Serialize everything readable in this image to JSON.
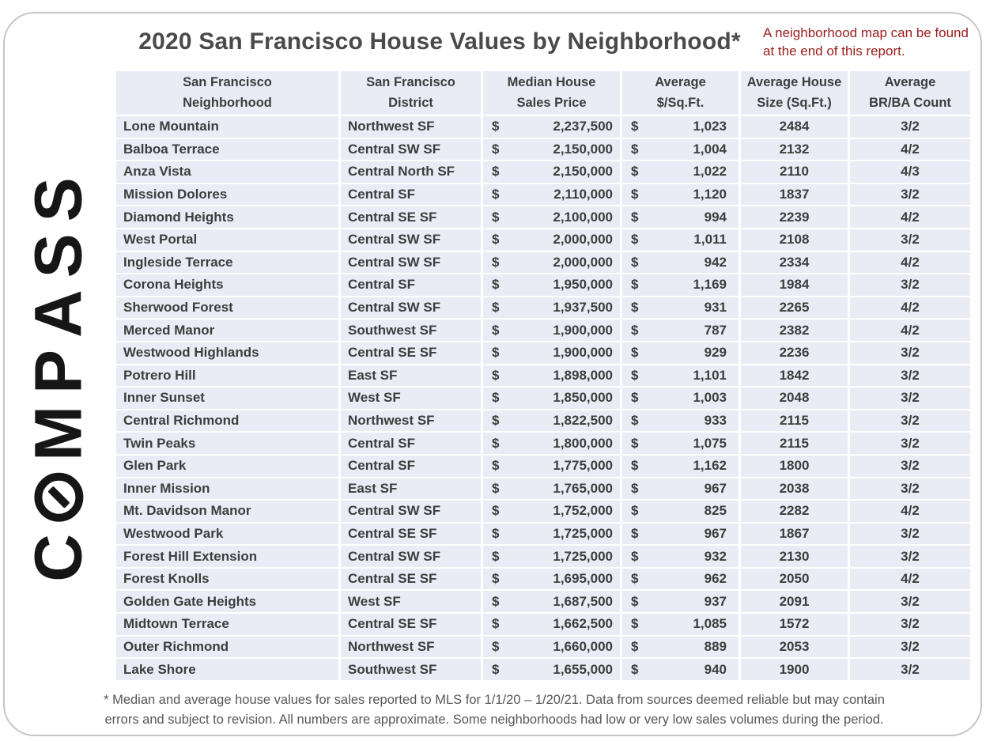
{
  "page": {
    "title": "2020 San Francisco House Values by Neighborhood*",
    "note": "A neighborhood map can be found at the end of this report.",
    "footnote": [
      "* Median and average house values for sales reported to MLS for 1/1/20 – 1/20/21. Data from sources deemed reliable but may contain",
      "errors and subject to revision. All numbers are approximate. Some neighborhoods had low or very low sales volumes during the period."
    ]
  },
  "logo": {
    "brand": "COMPASS",
    "letters": [
      "C",
      "O",
      "M",
      "P",
      "A",
      "S",
      "S"
    ]
  },
  "colors": {
    "note_red": "#9c1c1c",
    "row_background": "#e9ecf5",
    "table_text": "#3d3d3d",
    "title_text": "#4a4a4a",
    "footnote_text": "#575757",
    "logo_black": "#161616",
    "card_border": "#c5c5c5"
  },
  "table": {
    "currency_symbol": "$",
    "columns": [
      {
        "line1": "San Francisco",
        "line2": "Neighborhood"
      },
      {
        "line1": "San Francisco",
        "line2": "District"
      },
      {
        "line1": "Median House",
        "line2": "Sales Price"
      },
      {
        "line1": "Average",
        "line2": "$/Sq.Ft."
      },
      {
        "line1": "Average House",
        "line2": "Size (Sq.Ft.)"
      },
      {
        "line1": "Average",
        "line2": "BR/BA Count"
      }
    ],
    "rows": [
      {
        "neighborhood": "Lone Mountain",
        "district": "Northwest SF",
        "median_price": "2,237,500",
        "avg_per_sqft": "1,023",
        "avg_size": "2484",
        "br_ba": "3/2"
      },
      {
        "neighborhood": "Balboa Terrace",
        "district": "Central SW SF",
        "median_price": "2,150,000",
        "avg_per_sqft": "1,004",
        "avg_size": "2132",
        "br_ba": "4/2"
      },
      {
        "neighborhood": "Anza Vista",
        "district": "Central North SF",
        "median_price": "2,150,000",
        "avg_per_sqft": "1,022",
        "avg_size": "2110",
        "br_ba": "4/3"
      },
      {
        "neighborhood": "Mission Dolores",
        "district": "Central SF",
        "median_price": "2,110,000",
        "avg_per_sqft": "1,120",
        "avg_size": "1837",
        "br_ba": "3/2"
      },
      {
        "neighborhood": "Diamond Heights",
        "district": "Central SE SF",
        "median_price": "2,100,000",
        "avg_per_sqft": "994",
        "avg_size": "2239",
        "br_ba": "4/2"
      },
      {
        "neighborhood": "West Portal",
        "district": "Central SW SF",
        "median_price": "2,000,000",
        "avg_per_sqft": "1,011",
        "avg_size": "2108",
        "br_ba": "3/2"
      },
      {
        "neighborhood": "Ingleside Terrace",
        "district": "Central SW SF",
        "median_price": "2,000,000",
        "avg_per_sqft": "942",
        "avg_size": "2334",
        "br_ba": "4/2"
      },
      {
        "neighborhood": "Corona Heights",
        "district": "Central SF",
        "median_price": "1,950,000",
        "avg_per_sqft": "1,169",
        "avg_size": "1984",
        "br_ba": "3/2"
      },
      {
        "neighborhood": "Sherwood Forest",
        "district": "Central SW SF",
        "median_price": "1,937,500",
        "avg_per_sqft": "931",
        "avg_size": "2265",
        "br_ba": "4/2"
      },
      {
        "neighborhood": "Merced Manor",
        "district": "Southwest SF",
        "median_price": "1,900,000",
        "avg_per_sqft": "787",
        "avg_size": "2382",
        "br_ba": "4/2"
      },
      {
        "neighborhood": "Westwood Highlands",
        "district": "Central SE SF",
        "median_price": "1,900,000",
        "avg_per_sqft": "929",
        "avg_size": "2236",
        "br_ba": "3/2"
      },
      {
        "neighborhood": "Potrero Hill",
        "district": "East SF",
        "median_price": "1,898,000",
        "avg_per_sqft": "1,101",
        "avg_size": "1842",
        "br_ba": "3/2"
      },
      {
        "neighborhood": "Inner Sunset",
        "district": "West SF",
        "median_price": "1,850,000",
        "avg_per_sqft": "1,003",
        "avg_size": "2048",
        "br_ba": "3/2"
      },
      {
        "neighborhood": "Central Richmond",
        "district": "Northwest SF",
        "median_price": "1,822,500",
        "avg_per_sqft": "933",
        "avg_size": "2115",
        "br_ba": "3/2"
      },
      {
        "neighborhood": "Twin Peaks",
        "district": "Central SF",
        "median_price": "1,800,000",
        "avg_per_sqft": "1,075",
        "avg_size": "2115",
        "br_ba": "3/2"
      },
      {
        "neighborhood": "Glen Park",
        "district": "Central SF",
        "median_price": "1,775,000",
        "avg_per_sqft": "1,162",
        "avg_size": "1800",
        "br_ba": "3/2"
      },
      {
        "neighborhood": "Inner Mission",
        "district": "East SF",
        "median_price": "1,765,000",
        "avg_per_sqft": "967",
        "avg_size": "2038",
        "br_ba": "3/2"
      },
      {
        "neighborhood": "Mt. Davidson Manor",
        "district": "Central SW SF",
        "median_price": "1,752,000",
        "avg_per_sqft": "825",
        "avg_size": "2282",
        "br_ba": "4/2"
      },
      {
        "neighborhood": "Westwood Park",
        "district": "Central SE SF",
        "median_price": "1,725,000",
        "avg_per_sqft": "967",
        "avg_size": "1867",
        "br_ba": "3/2"
      },
      {
        "neighborhood": "Forest Hill Extension",
        "district": "Central SW SF",
        "median_price": "1,725,000",
        "avg_per_sqft": "932",
        "avg_size": "2130",
        "br_ba": "3/2"
      },
      {
        "neighborhood": "Forest Knolls",
        "district": "Central SE SF",
        "median_price": "1,695,000",
        "avg_per_sqft": "962",
        "avg_size": "2050",
        "br_ba": "4/2"
      },
      {
        "neighborhood": "Golden Gate Heights",
        "district": "West SF",
        "median_price": "1,687,500",
        "avg_per_sqft": "937",
        "avg_size": "2091",
        "br_ba": "3/2"
      },
      {
        "neighborhood": "Midtown Terrace",
        "district": "Central SE SF",
        "median_price": "1,662,500",
        "avg_per_sqft": "1,085",
        "avg_size": "1572",
        "br_ba": "3/2"
      },
      {
        "neighborhood": "Outer Richmond",
        "district": "Northwest SF",
        "median_price": "1,660,000",
        "avg_per_sqft": "889",
        "avg_size": "2053",
        "br_ba": "3/2"
      },
      {
        "neighborhood": "Lake Shore",
        "district": "Southwest SF",
        "median_price": "1,655,000",
        "avg_per_sqft": "940",
        "avg_size": "1900",
        "br_ba": "3/2"
      }
    ]
  }
}
